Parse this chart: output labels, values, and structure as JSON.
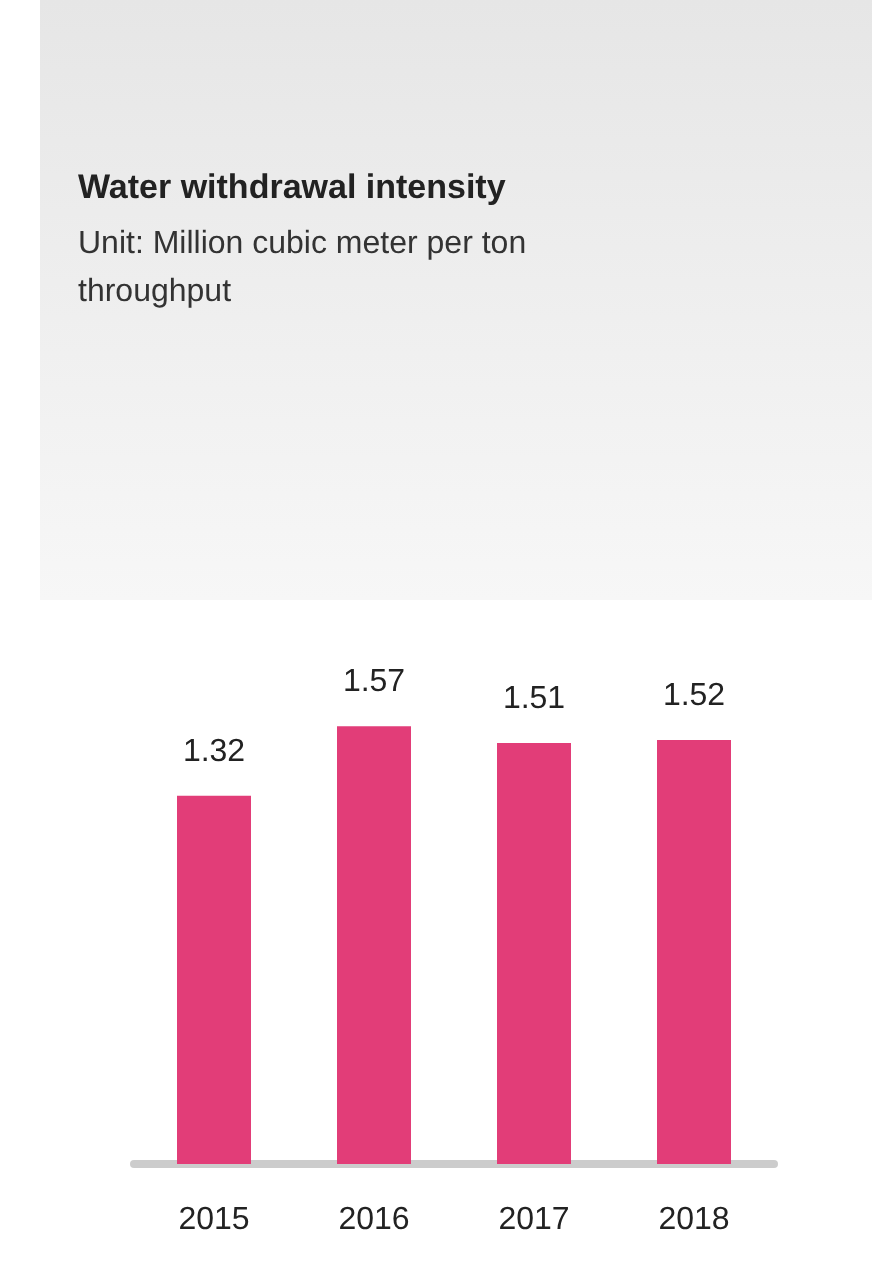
{
  "chart_data": {
    "type": "bar",
    "title": "Water withdrawal intensity",
    "subtitle": "Unit: Million cubic meter per ton throughput",
    "categories": [
      "2015",
      "2016",
      "2017",
      "2018"
    ],
    "series": [
      {
        "color": "#e23d78",
        "values": [
          1.32,
          1.57,
          1.51,
          1.52
        ]
      }
    ],
    "data_labels": true,
    "grid": false
  }
}
